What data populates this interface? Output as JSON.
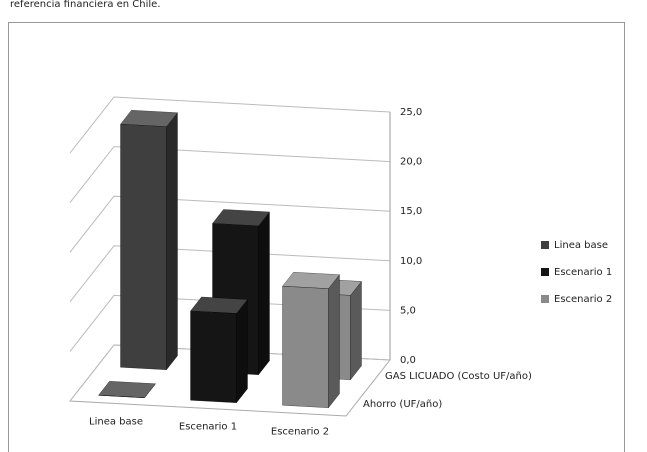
{
  "caption": "referencia financiera en Chile.",
  "chart_data": {
    "type": "bar3d",
    "categories": [
      "Linea base",
      "Escenario 1",
      "Escenario 2"
    ],
    "series": [
      {
        "name": "GAS LICUADO (Costo UF/año)",
        "values": [
          24.5,
          15,
          8.5
        ]
      },
      {
        "name": "Ahorro (UF/año)",
        "values": [
          0,
          9,
          12
        ]
      }
    ],
    "legend": [
      {
        "name": "Linea base",
        "color": "#3f3f3f"
      },
      {
        "name": "Escenario 1",
        "color": "#151515"
      },
      {
        "name": "Escenario 2",
        "color": "#8a8a8a"
      }
    ],
    "ylim": [
      0,
      25
    ],
    "yticks": [
      {
        "value": 0,
        "label": "0,0"
      },
      {
        "value": 5,
        "label": "5,0"
      },
      {
        "value": 10,
        "label": "10,0"
      },
      {
        "value": 15,
        "label": "15,0"
      },
      {
        "value": 20,
        "label": "20,0"
      },
      {
        "value": 25,
        "label": "25,0"
      }
    ],
    "grid": true
  }
}
